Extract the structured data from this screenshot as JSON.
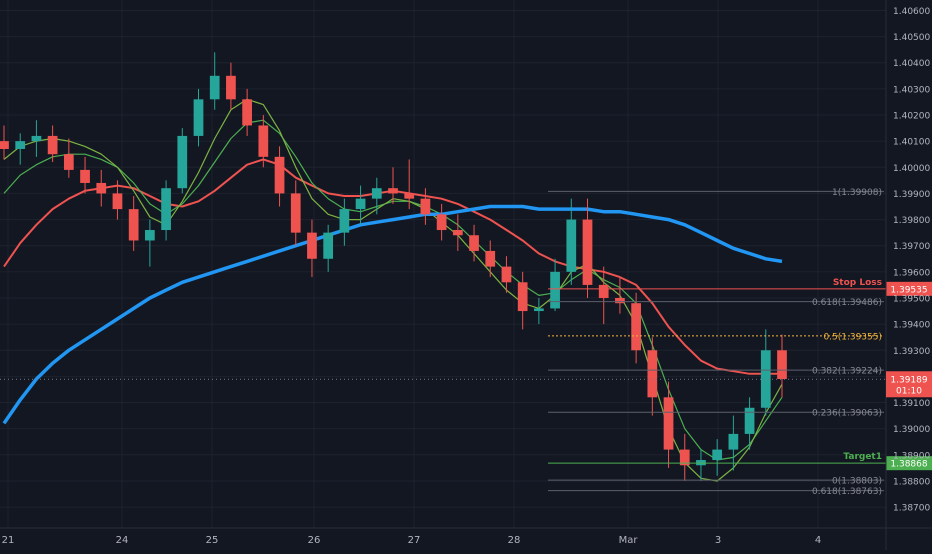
{
  "chart_data": {
    "type": "candlestick",
    "y_axis": {
      "min": 1.3862,
      "max": 1.4064,
      "ticks": [
        "1.40600",
        "1.40500",
        "1.40400",
        "1.40300",
        "1.40200",
        "1.40100",
        "1.40000",
        "1.39900",
        "1.39800",
        "1.39700",
        "1.39600",
        "1.39500",
        "1.39400",
        "1.39300",
        "1.39200",
        "1.39100",
        "1.39000",
        "1.38900",
        "1.38800",
        "1.38700"
      ]
    },
    "x_axis": {
      "labels": [
        "21",
        "24",
        "25",
        "26",
        "27",
        "28",
        "Mar",
        "3",
        "4"
      ]
    },
    "current_price": {
      "value": 1.39189,
      "label": "1.39189",
      "countdown": "01:10",
      "color": "#ef5350"
    },
    "fib_levels": [
      {
        "ratio": "1",
        "price": 1.39908,
        "label": "1(1.39908)",
        "color": "#5d606b"
      },
      {
        "ratio": "0.618",
        "price": 1.39486,
        "label": "0.618(1.39486)",
        "color": "#5d606b"
      },
      {
        "ratio": "0.5",
        "price": 1.39355,
        "label": "0.5(1.39355)",
        "color": "#f0b23e"
      },
      {
        "ratio": "0.382",
        "price": 1.39224,
        "label": "0.382(1.39224)",
        "color": "#5d606b"
      },
      {
        "ratio": "0.236",
        "price": 1.39063,
        "label": "0.236(1.39063)",
        "color": "#5d606b"
      },
      {
        "ratio": "0",
        "price": 1.38803,
        "label": "0(1.38803)",
        "color": "#5d606b"
      },
      {
        "ratio": "0.618",
        "price": 1.38763,
        "label": "0.618(1.38763)",
        "color": "#5d606b"
      }
    ],
    "levels": [
      {
        "name": "Stop Loss",
        "price": 1.39535,
        "label": "1.39535",
        "color": "#ef5350"
      },
      {
        "name": "Target1",
        "price": 1.38868,
        "label": "1.38868",
        "color": "#4caf50"
      }
    ],
    "colors": {
      "up": "#26a69a",
      "down": "#ef5350",
      "background": "#131722",
      "grid": "#1e222d",
      "axis_text": "#b2b5be"
    },
    "ma_series": [
      {
        "color": "#ef5350",
        "values": [
          1.3962,
          1.3971,
          1.3978,
          1.3984,
          1.3988,
          1.3991,
          1.3992,
          1.3993,
          1.3992,
          1.3989,
          1.3986,
          1.3985,
          1.3987,
          1.3991,
          1.3996,
          1.4001,
          1.4003,
          1.4001,
          1.3996,
          1.3993,
          1.399,
          1.3989,
          1.3989,
          1.399,
          1.3991,
          1.399,
          1.3989,
          1.3988,
          1.3986,
          1.3983,
          1.398,
          1.3976,
          1.3972,
          1.3967,
          1.3964,
          1.3962,
          1.3961,
          1.396,
          1.3958,
          1.3955,
          1.3948,
          1.3939,
          1.3932,
          1.3926,
          1.3923,
          1.3922,
          1.3921,
          1.3921,
          1.3921
        ]
      },
      {
        "color": "#4caf50",
        "values": [
          1.399,
          1.3997,
          1.4001,
          1.4004,
          1.4005,
          1.4005,
          1.4003,
          1.4,
          1.3994,
          1.3986,
          1.3982,
          1.3986,
          1.3993,
          1.4002,
          1.4011,
          1.4017,
          1.4018,
          1.4013,
          1.4004,
          1.3994,
          1.3988,
          1.3984,
          1.3983,
          1.3985,
          1.3987,
          1.3987,
          1.3985,
          1.3982,
          1.3978,
          1.3972,
          1.3966,
          1.396,
          1.3955,
          1.3951,
          1.3952,
          1.3957,
          1.3961,
          1.3957,
          1.3954,
          1.3948,
          1.3932,
          1.3915,
          1.39,
          1.3892,
          1.3888,
          1.3889,
          1.3894,
          1.3903,
          1.3912
        ]
      },
      {
        "color": "#7cb342",
        "values": [
          1.4003,
          1.4008,
          1.401,
          1.4011,
          1.401,
          1.4008,
          1.4005,
          1.4,
          1.3991,
          1.3981,
          1.3978,
          1.3987,
          1.3998,
          1.4011,
          1.4022,
          1.4026,
          1.4024,
          1.4014,
          1.4,
          1.3988,
          1.3982,
          1.398,
          1.398,
          1.3984,
          1.3988,
          1.3987,
          1.3984,
          1.3979,
          1.3974,
          1.3967,
          1.396,
          1.3953,
          1.3948,
          1.3946,
          1.3951,
          1.396,
          1.3963,
          1.3956,
          1.3951,
          1.394,
          1.392,
          1.39,
          1.3887,
          1.3881,
          1.388,
          1.3885,
          1.3893,
          1.3906,
          1.3917
        ]
      },
      {
        "color": "#2196f3",
        "values": [
          1.3902,
          1.3911,
          1.3919,
          1.3925,
          1.393,
          1.3934,
          1.3938,
          1.3942,
          1.3946,
          1.395,
          1.3953,
          1.3956,
          1.3958,
          1.396,
          1.3962,
          1.3964,
          1.3966,
          1.3968,
          1.397,
          1.3972,
          1.3974,
          1.3976,
          1.3978,
          1.3979,
          1.398,
          1.3981,
          1.3982,
          1.3982,
          1.3983,
          1.3984,
          1.3985,
          1.3985,
          1.3985,
          1.3984,
          1.3984,
          1.3984,
          1.3984,
          1.3983,
          1.3983,
          1.3982,
          1.3981,
          1.398,
          1.3978,
          1.3975,
          1.3972,
          1.3969,
          1.3967,
          1.3965,
          1.3964
        ]
      }
    ],
    "candles": [
      [
        1.401,
        1.4016,
        1.4003,
        1.4007
      ],
      [
        1.4007,
        1.4013,
        1.4001,
        1.401
      ],
      [
        1.401,
        1.4018,
        1.4004,
        1.4012
      ],
      [
        1.4012,
        1.4016,
        1.4002,
        1.4005
      ],
      [
        1.4005,
        1.4011,
        1.3996,
        1.3999
      ],
      [
        1.3999,
        1.4004,
        1.399,
        1.3994
      ],
      [
        1.3994,
        1.3999,
        1.3985,
        1.399
      ],
      [
        1.399,
        1.3995,
        1.398,
        1.3984
      ],
      [
        1.3984,
        1.3989,
        1.3968,
        1.3972
      ],
      [
        1.3972,
        1.398,
        1.3962,
        1.3976
      ],
      [
        1.3976,
        1.3995,
        1.3972,
        1.3992
      ],
      [
        1.3992,
        1.4015,
        1.399,
        1.4012
      ],
      [
        1.4012,
        1.403,
        1.4008,
        1.4026
      ],
      [
        1.4026,
        1.4044,
        1.4022,
        1.4035
      ],
      [
        1.4035,
        1.404,
        1.4022,
        1.4026
      ],
      [
        1.4026,
        1.403,
        1.4012,
        1.4016
      ],
      [
        1.4016,
        1.402,
        1.4,
        1.4004
      ],
      [
        1.4004,
        1.4008,
        1.3985,
        1.399
      ],
      [
        1.399,
        1.3995,
        1.397,
        1.3975
      ],
      [
        1.3975,
        1.398,
        1.3958,
        1.3965
      ],
      [
        1.3965,
        1.3978,
        1.396,
        1.3975
      ],
      [
        1.3975,
        1.3988,
        1.397,
        1.3984
      ],
      [
        1.3984,
        1.3993,
        1.3978,
        1.3988
      ],
      [
        1.3988,
        1.3996,
        1.3982,
        1.3992
      ],
      [
        1.3992,
        1.4,
        1.3986,
        1.399
      ],
      [
        1.399,
        1.4003,
        1.3984,
        1.3988
      ],
      [
        1.3988,
        1.3992,
        1.3978,
        1.3982
      ],
      [
        1.3982,
        1.3986,
        1.3972,
        1.3976
      ],
      [
        1.3976,
        1.3982,
        1.3968,
        1.3974
      ],
      [
        1.3974,
        1.3978,
        1.3964,
        1.3968
      ],
      [
        1.3968,
        1.3972,
        1.3958,
        1.3962
      ],
      [
        1.3962,
        1.3966,
        1.3952,
        1.3956
      ],
      [
        1.3956,
        1.396,
        1.3938,
        1.3945
      ],
      [
        1.3945,
        1.395,
        1.394,
        1.3946
      ],
      [
        1.3946,
        1.3965,
        1.3945,
        1.396
      ],
      [
        1.396,
        1.3988,
        1.3955,
        1.398
      ],
      [
        1.398,
        1.3988,
        1.395,
        1.3955
      ],
      [
        1.3955,
        1.3962,
        1.394,
        1.395
      ],
      [
        1.395,
        1.3958,
        1.3944,
        1.3948
      ],
      [
        1.3948,
        1.3952,
        1.3925,
        1.393
      ],
      [
        1.393,
        1.3935,
        1.3905,
        1.3912
      ],
      [
        1.3912,
        1.3918,
        1.3885,
        1.3892
      ],
      [
        1.3892,
        1.3898,
        1.388,
        1.3886
      ],
      [
        1.3886,
        1.3892,
        1.388,
        1.3888
      ],
      [
        1.3888,
        1.3896,
        1.3882,
        1.3892
      ],
      [
        1.3892,
        1.3905,
        1.3884,
        1.3898
      ],
      [
        1.3898,
        1.3912,
        1.3892,
        1.3908
      ],
      [
        1.3908,
        1.3938,
        1.3905,
        1.393
      ],
      [
        1.393,
        1.3936,
        1.3912,
        1.3919
      ]
    ]
  }
}
